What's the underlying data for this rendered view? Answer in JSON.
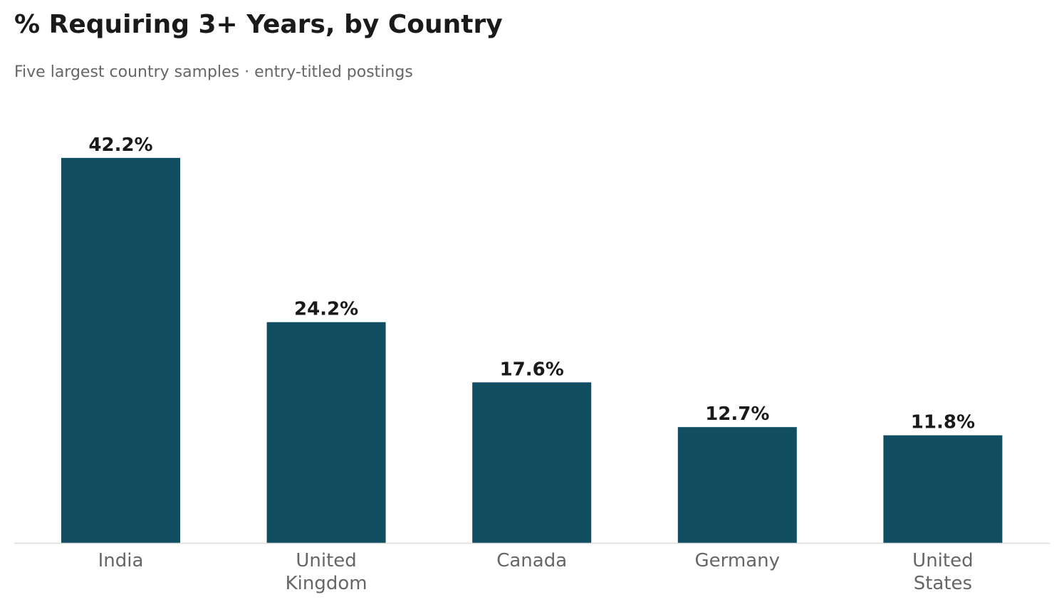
{
  "chart_data": {
    "type": "bar",
    "title": "% Requiring 3+ Years, by Country",
    "subtitle": "Five largest country samples · entry-titled postings",
    "categories": [
      "India",
      "United Kingdom",
      "Canada",
      "Germany",
      "United States"
    ],
    "tick_labels": [
      [
        "India"
      ],
      [
        "United",
        "Kingdom"
      ],
      [
        "Canada"
      ],
      [
        "Germany"
      ],
      [
        "United",
        "States"
      ]
    ],
    "values": [
      42.2,
      24.2,
      17.6,
      12.7,
      11.8
    ],
    "data_labels": [
      "42.2%",
      "24.2%",
      "17.6%",
      "12.7%",
      "11.8%"
    ],
    "xlabel": "",
    "ylabel": "",
    "ylim": [
      0,
      45
    ],
    "grid": false,
    "legend": "none",
    "colors": {
      "bar": "#114e62",
      "axis_line": "#dddddd"
    }
  }
}
